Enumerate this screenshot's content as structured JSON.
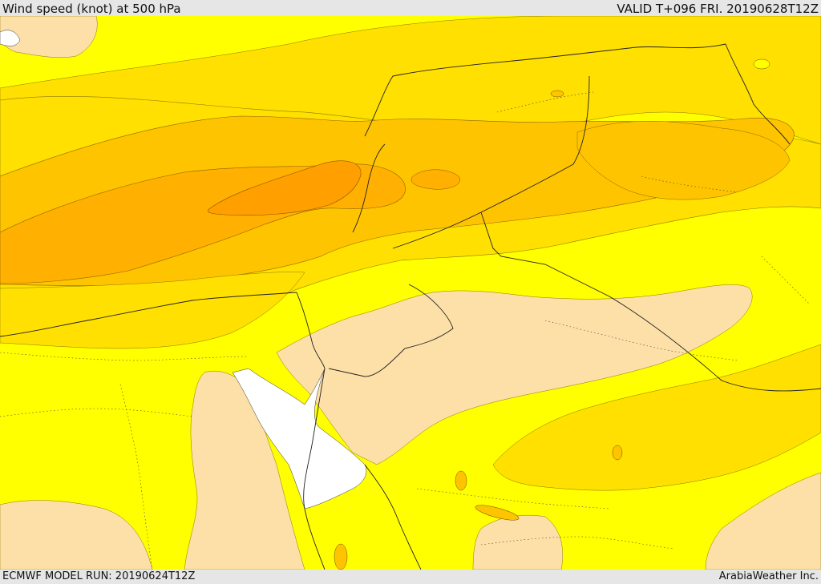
{
  "header": {
    "title": "Wind speed (knot) at 500 hPa",
    "valid_label": "VALID T+096 FRI. 20190628T12Z"
  },
  "footer": {
    "model_run": "ECMWF MODEL RUN: 20190624T12Z",
    "provider": "ArabiaWeather Inc."
  },
  "map": {
    "field": "wind speed",
    "level_hpa": 500,
    "colors": {
      "lowest": "#fde0a8",
      "low": "#ffff00",
      "mid": "#ffe000",
      "high": "#ffc400",
      "higher": "#ffb000",
      "highest": "#ff9f00",
      "sea_gap": "#ffffff"
    }
  }
}
